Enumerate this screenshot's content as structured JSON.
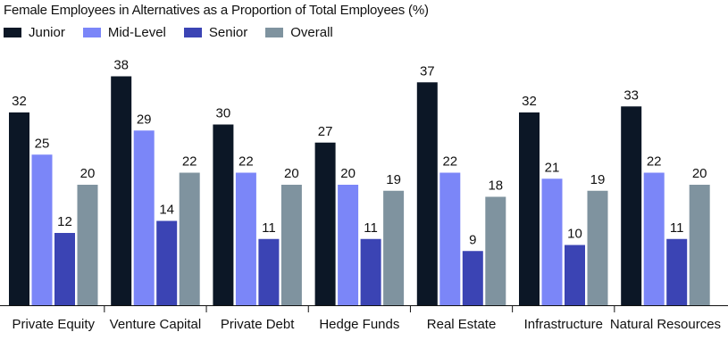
{
  "chart_data": {
    "type": "bar",
    "title": "Female Employees in Alternatives as a Proportion of Total Employees (%)",
    "categories": [
      "Private Equity",
      "Venture Capital",
      "Private Debt",
      "Hedge Funds",
      "Real Estate",
      "Infrastructure",
      "Natural Resources"
    ],
    "series": [
      {
        "name": "Junior",
        "color": "#0c1726",
        "values": [
          32,
          38,
          30,
          27,
          37,
          32,
          33
        ]
      },
      {
        "name": "Mid-Level",
        "color": "#7b86f8",
        "values": [
          25,
          29,
          22,
          20,
          22,
          21,
          22
        ]
      },
      {
        "name": "Senior",
        "color": "#3b44b4",
        "values": [
          12,
          14,
          11,
          11,
          9,
          10,
          11
        ]
      },
      {
        "name": "Overall",
        "color": "#7f939f",
        "values": [
          20,
          22,
          20,
          19,
          18,
          19,
          20
        ]
      }
    ],
    "ylim": [
      0,
      40
    ],
    "grid": false,
    "legend_position": "top-left",
    "xlabel": "",
    "ylabel": ""
  }
}
